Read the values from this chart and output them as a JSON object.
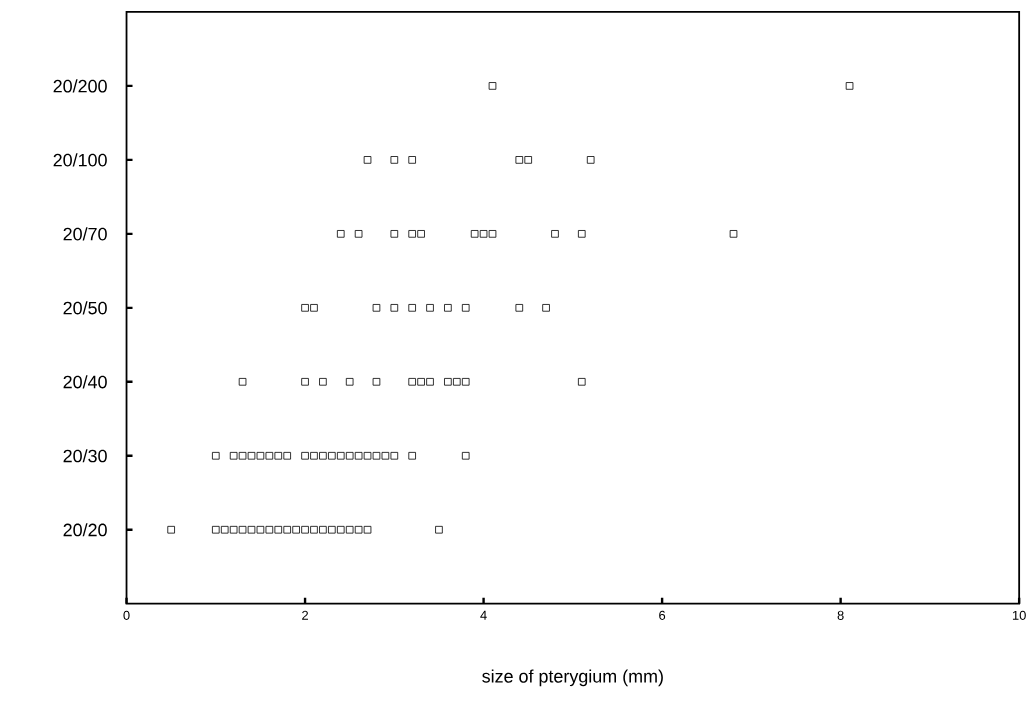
{
  "chart_data": {
    "type": "scatter",
    "orientation": "horizontal",
    "xlabel": "size of pterygium (mm)",
    "xlim": [
      0,
      10
    ],
    "xticks": [
      0,
      2,
      4,
      6,
      8,
      10
    ],
    "categories": [
      "20/200",
      "20/100",
      "20/70",
      "20/50",
      "20/40",
      "20/30",
      "20/20"
    ],
    "marker": "square",
    "grid": false,
    "series": [
      {
        "color": "#000000",
        "values": [
          4.1,
          2.7,
          2.4,
          2.0,
          1.3,
          1.0,
          0.5
        ]
      },
      {
        "color": "#000000",
        "values": [
          8.1,
          3.0,
          2.6,
          2.1,
          2.0,
          1.2,
          1.0
        ]
      },
      {
        "color": "#000000",
        "values": [
          null,
          3.2,
          3.0,
          2.8,
          2.2,
          1.3,
          1.1
        ]
      },
      {
        "color": "#000000",
        "values": [
          null,
          4.4,
          3.2,
          3.0,
          2.5,
          1.4,
          1.2
        ]
      },
      {
        "color": "#000000",
        "values": [
          null,
          4.5,
          3.3,
          3.2,
          2.8,
          1.5,
          1.3
        ]
      },
      {
        "color": "#000000",
        "values": [
          null,
          5.2,
          3.9,
          3.4,
          3.2,
          1.6,
          1.4
        ]
      },
      {
        "color": "#000000",
        "values": [
          null,
          null,
          4.0,
          3.6,
          3.3,
          1.7,
          1.5
        ]
      },
      {
        "color": "#000000",
        "values": [
          null,
          null,
          4.1,
          3.8,
          3.4,
          1.8,
          1.6
        ]
      },
      {
        "color": "#000000",
        "values": [
          null,
          null,
          4.8,
          4.4,
          3.6,
          2.0,
          1.7
        ]
      },
      {
        "color": "#000000",
        "values": [
          null,
          null,
          5.1,
          4.7,
          3.7,
          2.1,
          1.8
        ]
      },
      {
        "color": "#000000",
        "values": [
          null,
          null,
          6.8,
          null,
          3.8,
          2.2,
          1.9
        ]
      },
      {
        "color": "#000000",
        "values": [
          null,
          null,
          null,
          null,
          5.1,
          2.3,
          2.0
        ]
      },
      {
        "color": "#000000",
        "values": [
          null,
          null,
          null,
          null,
          null,
          2.4,
          2.1
        ]
      },
      {
        "color": "#000000",
        "values": [
          null,
          null,
          null,
          null,
          null,
          2.5,
          2.2
        ]
      },
      {
        "color": "#000000",
        "values": [
          null,
          null,
          null,
          null,
          null,
          2.6,
          2.3
        ]
      },
      {
        "color": "#000000",
        "values": [
          null,
          null,
          null,
          null,
          null,
          2.7,
          2.4
        ]
      },
      {
        "color": "#000000",
        "values": [
          null,
          null,
          null,
          null,
          null,
          2.8,
          2.5
        ]
      },
      {
        "color": "#000000",
        "values": [
          null,
          null,
          null,
          null,
          null,
          2.9,
          2.6
        ]
      },
      {
        "color": "#000000",
        "values": [
          null,
          null,
          null,
          null,
          null,
          3.0,
          2.7
        ]
      },
      {
        "color": "#000000",
        "values": [
          null,
          null,
          null,
          null,
          null,
          3.2,
          3.5
        ]
      },
      {
        "color": "#000000",
        "values": [
          null,
          null,
          null,
          null,
          null,
          3.8,
          null
        ]
      }
    ]
  }
}
